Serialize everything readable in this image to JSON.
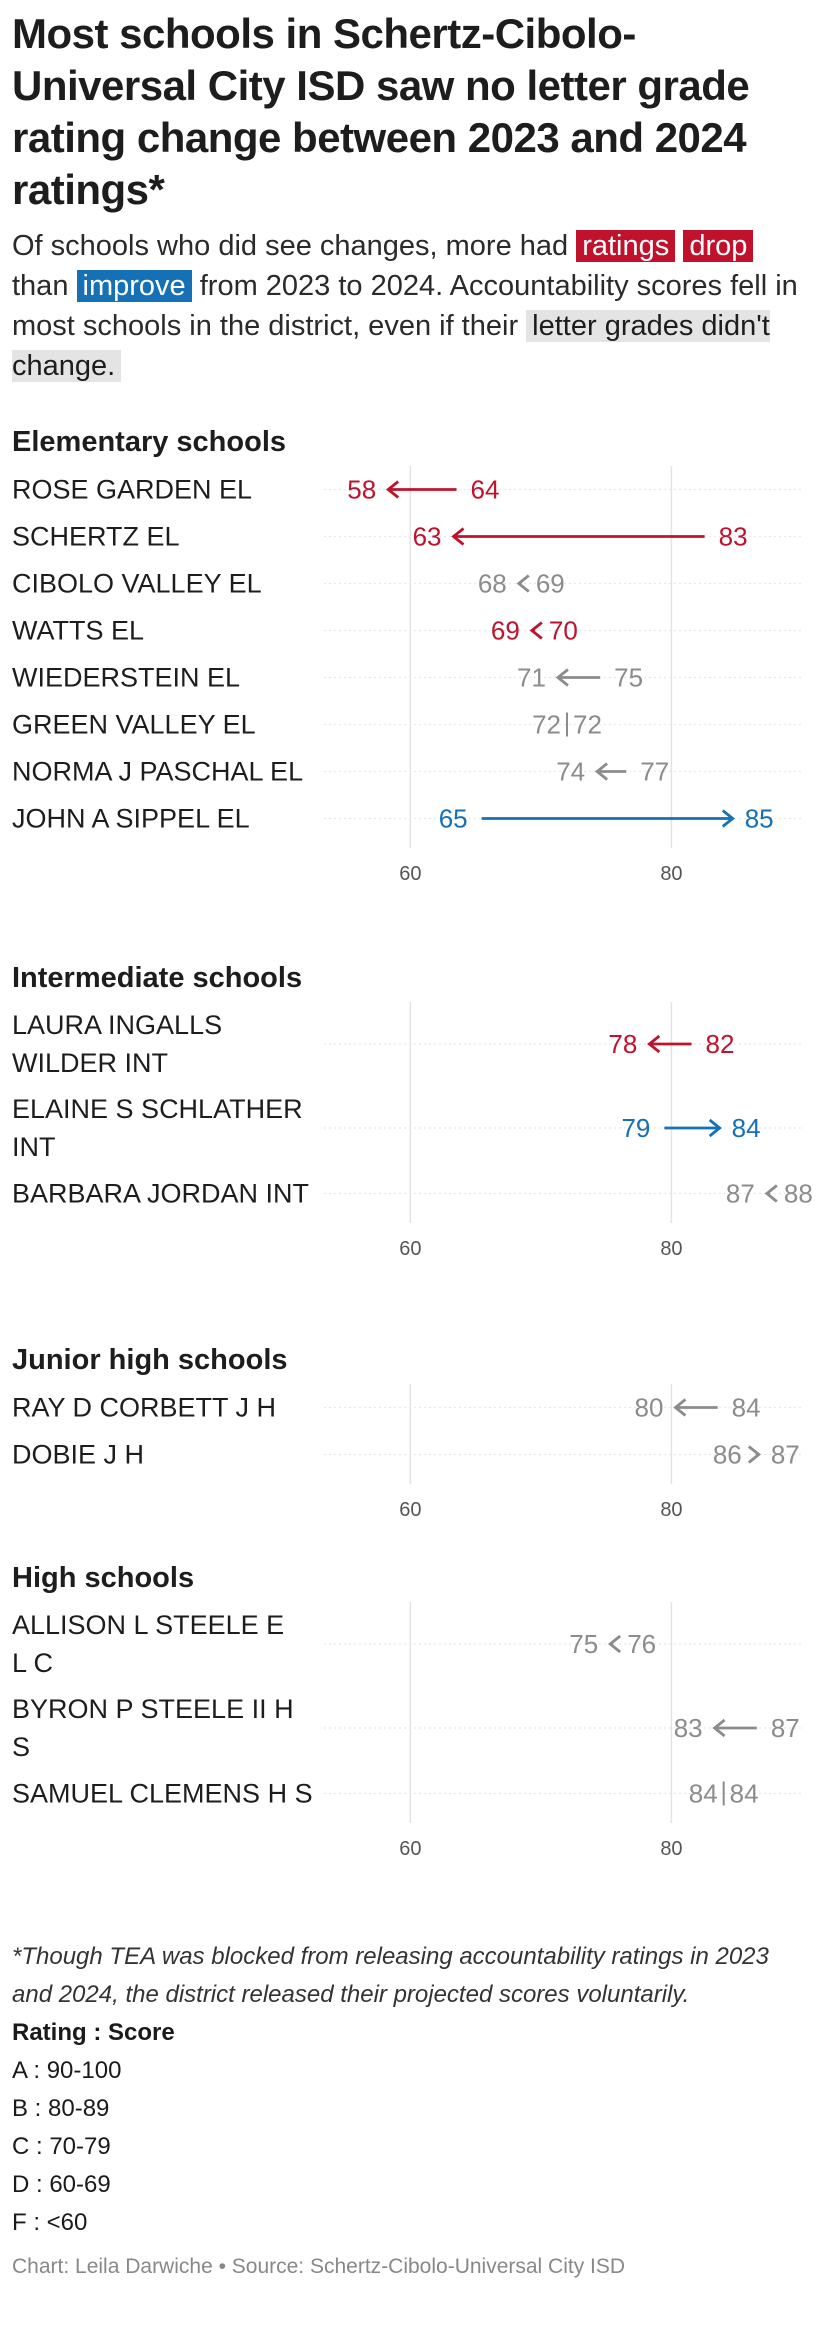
{
  "title": "Most schools in Schertz-Cibolo-Universal City ISD saw no letter grade rating change between 2023 and 2024 ratings*",
  "subtitle": {
    "p1": "Of schools who did see changes, more had",
    "drop1": "ratings",
    "drop2": "drop",
    "p2": "than",
    "improve": "improve",
    "p3": "from 2023 to 2024.",
    "p4": "Accountability scores fell in most schools in the district, even if their",
    "grey": "letter grades didn't change."
  },
  "colors": {
    "drop": "#c0122d",
    "improve": "#1570b5",
    "same": "#8c8c8c"
  },
  "chart_data": [
    {
      "type": "arrow-dot",
      "title": "Elementary schools",
      "xticks": [
        60,
        80
      ],
      "xlim": [
        54,
        90
      ],
      "rows": [
        {
          "label": "ROSE GARDEN EL",
          "from": 64,
          "to": 58,
          "status": "drop"
        },
        {
          "label": "SCHERTZ EL",
          "from": 83,
          "to": 63,
          "status": "drop"
        },
        {
          "label": "CIBOLO VALLEY EL",
          "from": 69,
          "to": 68,
          "status": "same"
        },
        {
          "label": "WATTS EL",
          "from": 70,
          "to": 69,
          "status": "drop"
        },
        {
          "label": "WIEDERSTEIN EL",
          "from": 75,
          "to": 71,
          "status": "same"
        },
        {
          "label": "GREEN VALLEY EL",
          "from": 72,
          "to": 72,
          "status": "same"
        },
        {
          "label": "NORMA J PASCHAL EL",
          "from": 77,
          "to": 74,
          "status": "same"
        },
        {
          "label": "JOHN A SIPPEL EL",
          "from": 65,
          "to": 85,
          "status": "improve"
        }
      ]
    },
    {
      "type": "arrow-dot",
      "title": "Intermediate schools",
      "xticks": [
        60,
        80
      ],
      "xlim": [
        54,
        90
      ],
      "rows": [
        {
          "label": "LAURA INGALLS WILDER INT",
          "from": 82,
          "to": 78,
          "status": "drop"
        },
        {
          "label": "ELAINE S SCHLATHER INT",
          "from": 79,
          "to": 84,
          "status": "improve"
        },
        {
          "label": "BARBARA JORDAN INT",
          "from": 88,
          "to": 87,
          "status": "same"
        }
      ]
    },
    {
      "type": "arrow-dot",
      "title": "Junior high schools",
      "xticks": [
        60,
        80
      ],
      "xlim": [
        54,
        90
      ],
      "rows": [
        {
          "label": "RAY D CORBETT J H",
          "from": 84,
          "to": 80,
          "status": "same"
        },
        {
          "label": "DOBIE J H",
          "from": 86,
          "to": 87,
          "status": "same"
        }
      ]
    },
    {
      "type": "arrow-dot",
      "title": "High schools",
      "xticks": [
        60,
        80
      ],
      "xlim": [
        54,
        90
      ],
      "rows": [
        {
          "label": "ALLISON L STEELE E L C",
          "from": 76,
          "to": 75,
          "status": "same"
        },
        {
          "label": "BYRON P STEELE II H S",
          "from": 87,
          "to": 83,
          "status": "same"
        },
        {
          "label": "SAMUEL CLEMENS H S",
          "from": 84,
          "to": 84,
          "status": "same"
        }
      ]
    }
  ],
  "footnote": "*Though TEA was blocked from releasing accountability ratings in 2023 and 2024, the district released their projected scores voluntarily.",
  "legend_title": "Rating : Score",
  "legend_items": [
    "A : 90-100",
    "B : 80-89",
    "C : 70-79",
    "D : 60-69",
    "F : <60"
  ],
  "credit": "Chart: Leila Darwiche • Source: Schertz-Cibolo-Universal City ISD"
}
